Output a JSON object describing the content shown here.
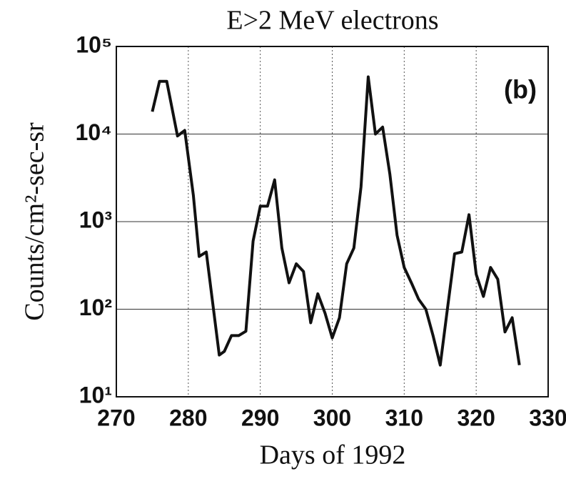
{
  "chart_data": {
    "type": "line",
    "title": "E>2 MeV electrons",
    "xlabel": "Days of 1992",
    "ylabel": "Counts/cm²-sec-sr",
    "annotation": "(b)",
    "log_y": true,
    "grid": true,
    "color": "#111111",
    "xlim": [
      270,
      330
    ],
    "xticks": [
      270,
      280,
      290,
      300,
      310,
      320,
      330
    ],
    "ylim": [
      10,
      100000
    ],
    "yticks": [
      {
        "value": 10,
        "label": "10¹"
      },
      {
        "value": 100,
        "label": "10²"
      },
      {
        "value": 1000,
        "label": "10³"
      },
      {
        "value": 10000,
        "label": "10⁴"
      },
      {
        "value": 100000,
        "label": "10⁵"
      }
    ],
    "x": [
      275,
      276,
      277,
      278.5,
      279.5,
      280.7,
      281.5,
      282.5,
      283.5,
      284.3,
      285,
      286,
      287,
      288,
      289,
      290,
      291,
      292,
      293,
      294,
      295,
      296,
      297,
      298,
      299,
      300,
      301,
      302,
      303,
      304,
      305,
      306,
      307,
      308,
      309,
      310,
      311,
      312,
      313,
      314,
      315,
      316,
      317,
      318,
      319,
      320,
      321,
      322,
      323,
      324,
      325,
      326
    ],
    "values": [
      18000,
      40000,
      40000,
      9500,
      11000,
      2000,
      400,
      450,
      100,
      30,
      33,
      50,
      50,
      56,
      600,
      1500,
      1500,
      3000,
      500,
      200,
      330,
      270,
      70,
      150,
      90,
      47,
      80,
      330,
      500,
      2500,
      45000,
      10000,
      12000,
      3500,
      700,
      300,
      200,
      130,
      100,
      50,
      23,
      100,
      430,
      450,
      1200,
      250,
      140,
      300,
      220,
      55,
      80,
      23
    ]
  }
}
